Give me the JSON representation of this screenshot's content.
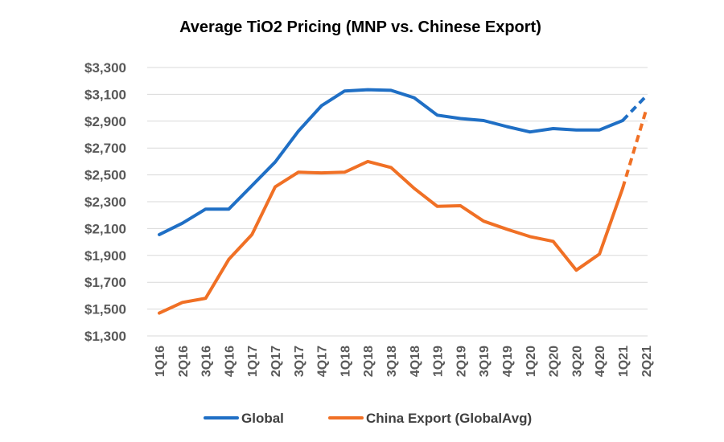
{
  "chart_data": {
    "type": "line",
    "title": "Average TiO2 Pricing (MNP vs. Chinese Export)",
    "xlabel": "",
    "ylabel": "",
    "ylim": [
      1300,
      3300
    ],
    "y_ticks": [
      1300,
      1500,
      1700,
      1900,
      2100,
      2300,
      2500,
      2700,
      2900,
      3100,
      3300
    ],
    "y_tick_labels": [
      "$1,300",
      "$1,500",
      "$1,700",
      "$1,900",
      "$2,100",
      "$2,300",
      "$2,500",
      "$2,700",
      "$2,900",
      "$3,100",
      "$3,300"
    ],
    "grid": true,
    "legend_position": "bottom",
    "categories": [
      "1Q16",
      "2Q16",
      "3Q16",
      "4Q16",
      "1Q17",
      "2Q17",
      "3Q17",
      "4Q17",
      "1Q18",
      "2Q18",
      "3Q18",
      "4Q18",
      "1Q19",
      "2Q19",
      "3Q19",
      "4Q19",
      "1Q20",
      "2Q20",
      "3Q20",
      "4Q20",
      "1Q21",
      "2Q21"
    ],
    "series": [
      {
        "name": "Global",
        "color": "#1F6FC5",
        "values": [
          2055,
          2140,
          2245,
          2245,
          2420,
          2595,
          2825,
          3015,
          3125,
          3135,
          3130,
          3075,
          2945,
          2920,
          2905,
          2860,
          2820,
          2845,
          2835,
          2835,
          2905,
          3085
        ],
        "dashed_from_index": 20
      },
      {
        "name": "China Export (GlobalAvg)",
        "color": "#F07025",
        "values": [
          1470,
          1550,
          1580,
          1870,
          2055,
          2410,
          2520,
          2515,
          2520,
          2600,
          2555,
          2400,
          2265,
          2270,
          2155,
          2095,
          2040,
          2005,
          1790,
          1910,
          2400,
          2975
        ],
        "dashed_from_index": 20
      }
    ]
  }
}
